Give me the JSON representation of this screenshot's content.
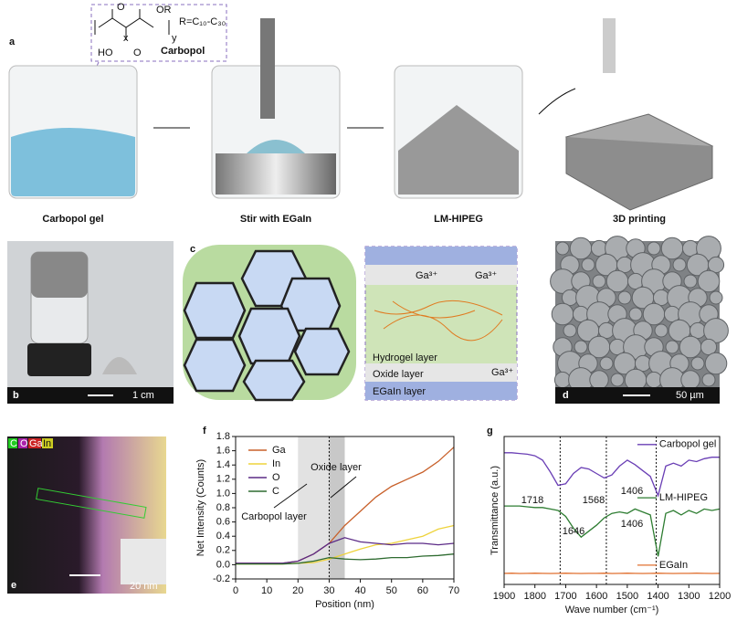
{
  "panel_a": {
    "label": "a",
    "structure": {
      "name": "Carbopol",
      "substituent": "R=C₁₀-C₃₀",
      "atoms": [
        "O",
        "OR",
        "HO",
        "O",
        "x",
        "y"
      ]
    },
    "steps": [
      "Carbopol gel",
      "Stir with EGaIn",
      "LM-HIPEG",
      "3D printing"
    ]
  },
  "panel_b": {
    "label": "b",
    "scale_bar": "1 cm"
  },
  "panel_c": {
    "label": "c",
    "ions": [
      "Ga³⁺",
      "Ga³⁺",
      "Ga³⁺"
    ],
    "layers": [
      "Hydrogel layer",
      "Oxide layer",
      "EGaIn layer"
    ]
  },
  "panel_d": {
    "label": "d",
    "scale_bar": "50 µm"
  },
  "panel_e": {
    "label": "e",
    "elements": [
      "C",
      "O",
      "Ga",
      "In"
    ],
    "scale_bar": "20 nm"
  },
  "chart_data": [
    {
      "type": "line",
      "label": "f",
      "xlabel": "Position (nm)",
      "ylabel": "Net Intensity (Counts)",
      "legend": "upper left",
      "x": [
        0,
        5,
        10,
        15,
        20,
        25,
        30,
        35,
        40,
        45,
        50,
        55,
        60,
        65,
        70
      ],
      "series": [
        {
          "name": "Ga",
          "color": "#c8602a",
          "values": [
            0.02,
            0.02,
            0.02,
            0.02,
            0.05,
            0.15,
            0.3,
            0.55,
            0.75,
            0.95,
            1.1,
            1.2,
            1.3,
            1.45,
            1.65
          ]
        },
        {
          "name": "In",
          "color": "#eed33c",
          "values": [
            0.01,
            0.01,
            0.01,
            0.01,
            0.02,
            0.03,
            0.08,
            0.15,
            0.22,
            0.28,
            0.3,
            0.35,
            0.4,
            0.5,
            0.55
          ]
        },
        {
          "name": "O",
          "color": "#5b2a86",
          "values": [
            0.02,
            0.02,
            0.02,
            0.02,
            0.05,
            0.15,
            0.3,
            0.38,
            0.32,
            0.3,
            0.28,
            0.3,
            0.3,
            0.28,
            0.3
          ]
        },
        {
          "name": "C",
          "color": "#2e6b30",
          "values": [
            0.01,
            0.01,
            0.01,
            0.01,
            0.02,
            0.05,
            0.1,
            0.08,
            0.07,
            0.08,
            0.1,
            0.1,
            0.12,
            0.13,
            0.15
          ]
        }
      ],
      "xlim": [
        0,
        70
      ],
      "xticks": [
        0,
        10,
        20,
        30,
        40,
        50,
        60,
        70
      ],
      "ylim": [
        -0.2,
        1.8
      ],
      "yticks": [
        -0.2,
        {
          "value": 0,
          "label": "0.0"
        },
        0.2,
        0.4,
        0.6,
        0.8,
        {
          "value": 1,
          "label": "1.0"
        },
        1.2,
        1.4,
        1.6,
        1.8
      ],
      "regions": [
        [
          20,
          30
        ],
        [
          30,
          35
        ]
      ],
      "reference_lines": [
        30
      ],
      "annotations": [
        "Carbopol layer",
        "Oxide layer"
      ]
    },
    {
      "type": "line",
      "label": "g",
      "xlabel": "Wave number (cm⁻¹)",
      "ylabel": "Transmittance (a.u.)",
      "legend": "inline",
      "x": [
        1900,
        1875,
        1850,
        1825,
        1800,
        1775,
        1750,
        1725,
        1700,
        1675,
        1650,
        1625,
        1600,
        1575,
        1550,
        1525,
        1500,
        1475,
        1450,
        1425,
        1400,
        1375,
        1350,
        1325,
        1300,
        1275,
        1250,
        1225,
        1200
      ],
      "series": [
        {
          "name": "Carbopol gel",
          "color": "#6a3fb5",
          "values": [
            8.9,
            8.9,
            8.85,
            8.8,
            8.7,
            8.4,
            7.6,
            6.7,
            6.8,
            7.5,
            7.9,
            7.8,
            7.5,
            7.2,
            7.4,
            8.0,
            8.4,
            8.1,
            7.7,
            7.3,
            6.0,
            8.0,
            8.2,
            8.0,
            8.4,
            8.3,
            8.5,
            8.6,
            8.6
          ]
        },
        {
          "name": "LM-HIPEG",
          "color": "#2e7d32",
          "values": [
            5.3,
            5.3,
            5.3,
            5.25,
            5.2,
            5.2,
            5.1,
            5.0,
            4.6,
            3.8,
            3.2,
            3.6,
            4.0,
            4.5,
            4.8,
            4.9,
            4.8,
            5.1,
            4.9,
            4.7,
            1.9,
            4.8,
            5.0,
            4.7,
            5.0,
            4.8,
            5.1,
            5.0,
            5.1
          ]
        },
        {
          "name": "EGaIn",
          "color": "#e07030",
          "values": [
            0.75,
            0.76,
            0.74,
            0.75,
            0.76,
            0.75,
            0.74,
            0.75,
            0.76,
            0.75,
            0.74,
            0.75,
            0.75,
            0.76,
            0.74,
            0.75,
            0.76,
            0.75,
            0.74,
            0.75,
            0.76,
            0.75,
            0.74,
            0.75,
            0.75,
            0.76,
            0.75,
            0.74,
            0.75
          ]
        }
      ],
      "xlim": [
        1900,
        1200
      ],
      "xticks": [
        1900,
        1800,
        1700,
        1600,
        1500,
        1400,
        1300,
        1200
      ],
      "ylim": [
        0,
        10
      ],
      "reference_lines": [
        1718,
        1568,
        1406
      ],
      "annotations": [
        "1718",
        "1568",
        "1406",
        "1646",
        "1406"
      ]
    }
  ]
}
